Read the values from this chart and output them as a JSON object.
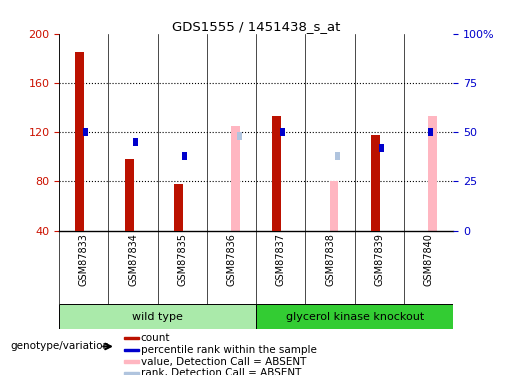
{
  "title": "GDS1555 / 1451438_s_at",
  "samples": [
    "GSM87833",
    "GSM87834",
    "GSM87835",
    "GSM87836",
    "GSM87837",
    "GSM87838",
    "GSM87839",
    "GSM87840"
  ],
  "count_values": [
    185,
    98,
    78,
    null,
    133,
    null,
    118,
    null
  ],
  "percentile_rank": [
    50,
    45,
    38,
    null,
    50,
    null,
    42,
    50
  ],
  "absent_value": [
    null,
    null,
    null,
    125,
    null,
    80,
    null,
    133
  ],
  "absent_rank": [
    null,
    null,
    null,
    48,
    null,
    38,
    null,
    null
  ],
  "ylim_left": [
    40,
    200
  ],
  "ylim_right": [
    0,
    100
  ],
  "yticks_left": [
    40,
    80,
    120,
    160,
    200
  ],
  "yticks_right": [
    0,
    25,
    50,
    75,
    100
  ],
  "ytick_labels_right": [
    "0",
    "25",
    "50",
    "75",
    "100%"
  ],
  "group_wt_label": "wild type",
  "group_ko_label": "glycerol kinase knockout",
  "group_wt_color": "#aaeaaa",
  "group_ko_color": "#33cc33",
  "bar_color_count": "#bb1100",
  "bar_color_rank": "#0000cc",
  "bar_color_absent_value": "#ffb6c1",
  "bar_color_absent_rank": "#b0c4de",
  "axis_color_left": "#cc1100",
  "axis_color_right": "#0000cc",
  "sample_area_bg": "#d0d0d0",
  "plot_bg": "#ffffff",
  "legend_items": [
    {
      "label": "count",
      "color": "#bb1100"
    },
    {
      "label": "percentile rank within the sample",
      "color": "#0000cc"
    },
    {
      "label": "value, Detection Call = ABSENT",
      "color": "#ffb6c1"
    },
    {
      "label": "rank, Detection Call = ABSENT",
      "color": "#b0c4de"
    }
  ],
  "genotype_label": "genotype/variation"
}
